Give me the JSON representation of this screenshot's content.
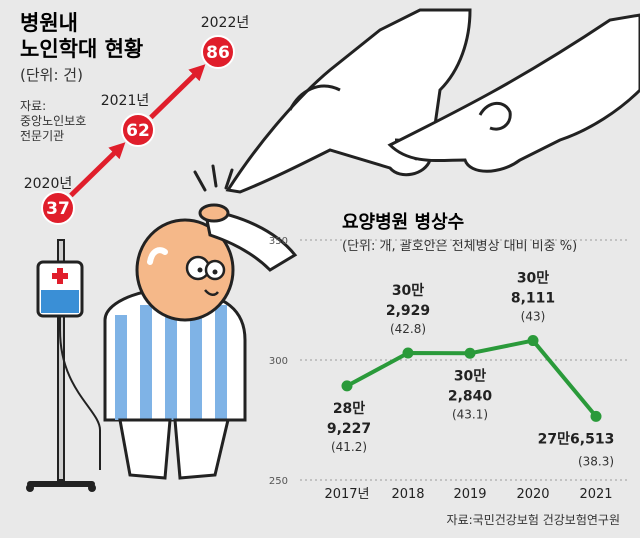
{
  "left_chart": {
    "title_line1": "병원내",
    "title_line2": "노인학대 현황",
    "unit": "(단위: 건)",
    "source_line1": "자료:",
    "source_line2": "중앙노인보호",
    "source_line3": "전문기관",
    "accent": "#e01e2b"
  },
  "right_chart": {
    "title": "요양병원 병상수",
    "unit": "(단위: 개, 괄호안은 전체병상 대비 비중 %)",
    "source": "자료:국민건강보험 건강보험연구원",
    "line_color": "#2a9a3a"
  },
  "chart_data": [
    {
      "type": "line",
      "title": "병원내 노인학대 현황",
      "ylabel": "건",
      "x": [
        "2020년",
        "2021년",
        "2022년"
      ],
      "values": [
        37,
        62,
        86
      ]
    },
    {
      "type": "line",
      "title": "요양병원 병상수",
      "ylabel": "개",
      "ylim": [
        250,
        350
      ],
      "yticks": [
        "250",
        "300",
        "350"
      ],
      "x": [
        "2017년",
        "2018",
        "2019",
        "2020",
        "2021"
      ],
      "values": [
        289227,
        302929,
        302840,
        308111,
        276513
      ],
      "plot_values": [
        289.2,
        302.9,
        302.8,
        308.1,
        276.5
      ],
      "labels": [
        {
          "line1": "28만",
          "line2": "9,227",
          "share": "(41.2)"
        },
        {
          "line1": "30만",
          "line2": "2,929",
          "share": "(42.8)"
        },
        {
          "line1": "30만",
          "line2": "2,840",
          "share": "(43.1)"
        },
        {
          "line1": "30만",
          "line2": "8,111",
          "share": "(43)"
        },
        {
          "line1": "27만6,513",
          "line2": "",
          "share": "(38.3)"
        }
      ],
      "shares": [
        41.2,
        42.8,
        43.1,
        43,
        38.3
      ]
    }
  ]
}
